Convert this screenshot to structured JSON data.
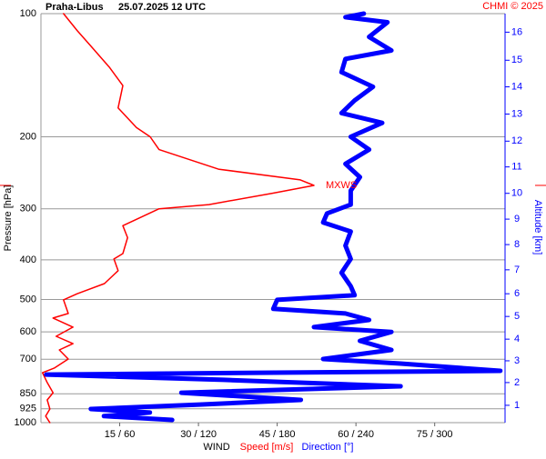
{
  "chart_data": {
    "type": "line",
    "station": "Praha-Libus",
    "title": "25.07.2025 12 UTC",
    "credit": "CHMI © 2025",
    "xlabel": "WIND",
    "ylabel": "Pressure [hPa]",
    "y2label": "Altitude [km]",
    "ylim": [
      1000,
      100
    ],
    "log_y": true,
    "grid": true,
    "yticks": [
      100,
      200,
      300,
      400,
      500,
      600,
      700,
      850,
      925,
      1000
    ],
    "xlim": [
      0,
      88.4
    ],
    "x2lim": [
      0,
      353.6
    ],
    "xticks": [
      {
        "value": 15,
        "label": "15 / 60"
      },
      {
        "value": 30,
        "label": "30 / 120"
      },
      {
        "value": 45,
        "label": "45 / 180"
      },
      {
        "value": 60,
        "label": "60 / 240"
      },
      {
        "value": 75,
        "label": "75 / 300"
      }
    ],
    "y2ticks": [
      1,
      2,
      3,
      4,
      5,
      6,
      7,
      8,
      9,
      10,
      11,
      12,
      13,
      14,
      15,
      16
    ],
    "y2ticks_pressure": [
      907,
      798,
      706,
      625,
      550,
      484,
      423,
      367,
      318,
      275,
      237,
      205,
      176,
      151,
      130,
      111
    ],
    "annotation": {
      "text": "MXWS",
      "pressure": 263,
      "color": "#ff0000"
    },
    "series": [
      {
        "name": "Speed [m/s]",
        "color": "#ff0000",
        "axis": "x",
        "pressure": [
          1000,
          964,
          926,
          880,
          845,
          798,
          755,
          735,
          699,
          664,
          641,
          615,
          584,
          555,
          541,
          501,
          484,
          457,
          425,
          398,
          386,
          353,
          330,
          300,
          293,
          275,
          263,
          255,
          240,
          215,
          200,
          190,
          170,
          150,
          135,
          120,
          110,
          100
        ],
        "values": [
          1.7,
          0.9,
          1.7,
          1.2,
          2.3,
          1.2,
          0.3,
          2.6,
          5.2,
          3.5,
          6.1,
          2.9,
          6.1,
          2.3,
          5.2,
          4.3,
          6.9,
          12.1,
          14.7,
          13.9,
          15.6,
          16.5,
          15.6,
          22.5,
          32,
          44,
          52,
          49.4,
          33.8,
          22.5,
          20.8,
          18.2,
          14.7,
          15.6,
          13,
          9.5,
          6.9,
          4.3
        ]
      },
      {
        "name": "Direction [°]",
        "color": "#0000ff",
        "axis": "x2",
        "pressure": [
          985,
          964,
          945,
          926,
          903,
          880,
          845,
          815,
          786,
          763,
          747,
          717,
          699,
          664,
          631,
          600,
          584,
          561,
          541,
          527,
          501,
          488,
          464,
          430,
          398,
          369,
          341,
          324,
          308,
          293,
          271,
          251,
          233,
          215,
          200,
          185,
          175,
          163,
          151,
          139,
          129,
          123,
          114,
          105,
          102,
          100
        ],
        "values": [
          100,
          48,
          83,
          38,
          121,
          198,
          107,
          274,
          139,
          4,
          350,
          274,
          215,
          267,
          243,
          267,
          208,
          250,
          232,
          177,
          180,
          239,
          236,
          229,
          236,
          232,
          236,
          215,
          218,
          236,
          236,
          243,
          232,
          250,
          236,
          260,
          229,
          239,
          253,
          229,
          232,
          267,
          250,
          264,
          232,
          246
        ]
      }
    ]
  }
}
